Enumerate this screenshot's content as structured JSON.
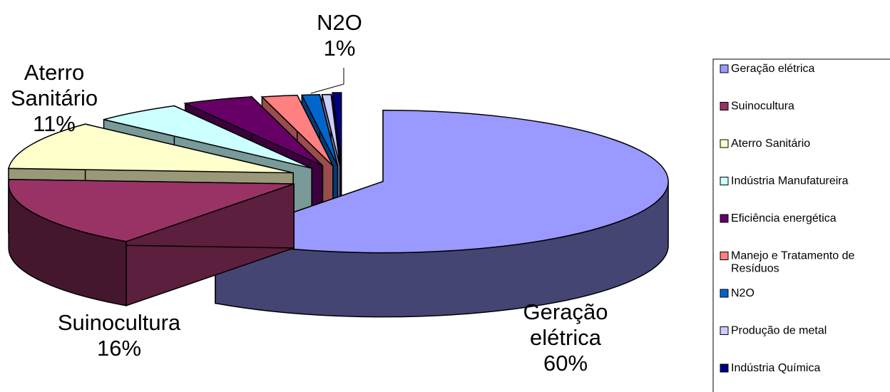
{
  "chart_data": {
    "type": "pie",
    "variant": "3d-exploded",
    "legend_position": "right",
    "slices": [
      {
        "label": "Geração elétrica",
        "value": 60,
        "color": "#9999ff",
        "data_label": [
          "Geração",
          "elétrica",
          "60%"
        ]
      },
      {
        "label": "Suinocultura",
        "value": 16,
        "color": "#993366",
        "data_label": [
          "Suinocultura",
          "16%"
        ]
      },
      {
        "label": "Aterro Sanitário",
        "value": 11,
        "color": "#ffffcc",
        "data_label": [
          "Aterro",
          "Sanitário",
          "11%"
        ]
      },
      {
        "label": "Indústria Manufatureira",
        "value": 5,
        "color": "#ccffff",
        "data_label": null
      },
      {
        "label": "Eficiência energética",
        "value": 4,
        "color": "#660066",
        "data_label": null
      },
      {
        "label": "Manejo e Tratamento de Resíduos",
        "value": 2,
        "color": "#ff8080",
        "data_label": null
      },
      {
        "label": "N2O",
        "value": 1,
        "color": "#0066cc",
        "data_label": [
          "N2O",
          "1%"
        ]
      },
      {
        "label": "Produção de metal",
        "value": 0.5,
        "color": "#ccccff",
        "data_label": null
      },
      {
        "label": "Indústria Química",
        "value": 0.5,
        "color": "#000080",
        "data_label": null
      }
    ]
  }
}
